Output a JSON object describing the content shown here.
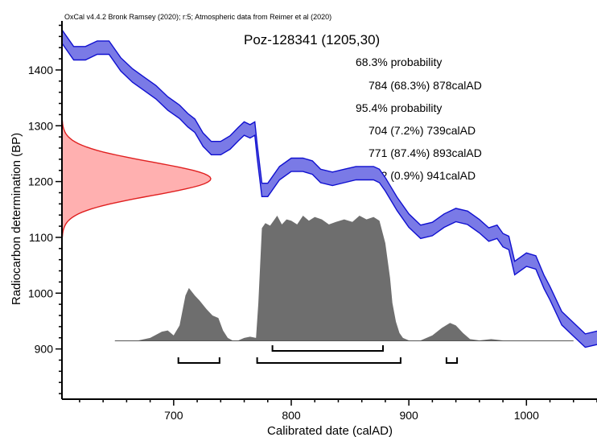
{
  "chart_data": {
    "type": "area",
    "credit": "OxCal v4.4.2 Bronk Ramsey (2020); r:5; Atmospheric data from Reimer et al (2020)",
    "sample": {
      "label": "Poz-128341 (1205,30)",
      "measured_bp": 1205,
      "error": 30
    },
    "xlabel": "Calibrated date (calAD)",
    "ylabel": "Radiocarbon determination (BP)",
    "xlim": [
      605,
      1060
    ],
    "ylim": [
      810,
      1485
    ],
    "xticks": [
      700,
      800,
      900,
      1000
    ],
    "yticks": [
      900,
      1000,
      1100,
      1200,
      1300,
      1400
    ],
    "ranges_text": {
      "sigma1_heading": "68.3% probability",
      "sigma1": [
        "784 (68.3%) 878calAD"
      ],
      "sigma2_heading": "95.4% probability",
      "sigma2": [
        "704 (7.2%) 739calAD",
        "771 (87.4%) 893calAD",
        "932 (0.9%) 941calAD"
      ]
    },
    "ranges": {
      "sigma1": [
        [
          784,
          878
        ]
      ],
      "sigma2": [
        [
          704,
          739
        ],
        [
          771,
          893
        ],
        [
          932,
          941
        ]
      ]
    },
    "calibration_curve": {
      "x": [
        605,
        615,
        625,
        635,
        645,
        655,
        665,
        675,
        685,
        695,
        705,
        712,
        718,
        725,
        732,
        740,
        748,
        755,
        760,
        765,
        769,
        771,
        775,
        780,
        790,
        800,
        810,
        818,
        825,
        835,
        845,
        855,
        862,
        870,
        875,
        880,
        890,
        900,
        910,
        920,
        930,
        940,
        950,
        960,
        968,
        975,
        980,
        985,
        990,
        1000,
        1008,
        1015,
        1020,
        1030,
        1040,
        1050,
        1060
      ],
      "y": [
        1460,
        1430,
        1430,
        1440,
        1440,
        1410,
        1390,
        1375,
        1360,
        1340,
        1325,
        1310,
        1300,
        1275,
        1260,
        1260,
        1270,
        1285,
        1295,
        1290,
        1295,
        1255,
        1185,
        1185,
        1215,
        1230,
        1230,
        1225,
        1210,
        1205,
        1210,
        1215,
        1215,
        1215,
        1210,
        1195,
        1160,
        1130,
        1110,
        1115,
        1130,
        1140,
        1135,
        1120,
        1105,
        1110,
        1095,
        1090,
        1045,
        1060,
        1055,
        1020,
        1000,
        955,
        935,
        915,
        920
      ],
      "sigma": 12
    },
    "measurement_curve": {
      "y_mean": 1205,
      "sd": 30,
      "extent_sd": 3.5
    },
    "probability_distribution": {
      "x": [
        650,
        670,
        680,
        690,
        695,
        700,
        705,
        710,
        713,
        718,
        722,
        728,
        733,
        738,
        742,
        746,
        750,
        755,
        760,
        765,
        770,
        772,
        775,
        778,
        782,
        785,
        788,
        792,
        796,
        800,
        805,
        810,
        815,
        820,
        826,
        832,
        838,
        845,
        852,
        858,
        864,
        870,
        875,
        880,
        884,
        886,
        889,
        892,
        895,
        900,
        910,
        920,
        928,
        935,
        940,
        946,
        952,
        960,
        970,
        980,
        1000,
        1040
      ],
      "density": [
        0,
        0,
        0.02,
        0.07,
        0.08,
        0.04,
        0.12,
        0.36,
        0.42,
        0.36,
        0.32,
        0.25,
        0.2,
        0.18,
        0.08,
        0.02,
        0,
        0,
        0.02,
        0.03,
        0.02,
        0.3,
        0.9,
        0.94,
        0.92,
        0.96,
        1.0,
        0.93,
        0.97,
        0.96,
        0.93,
        1.0,
        0.96,
        0.99,
        0.97,
        0.93,
        0.95,
        0.97,
        0.95,
        1.0,
        0.97,
        0.99,
        0.96,
        0.78,
        0.5,
        0.3,
        0.15,
        0.06,
        0.02,
        0,
        0,
        0.04,
        0.1,
        0.14,
        0.12,
        0.06,
        0.01,
        0,
        0.01,
        0,
        0,
        0
      ]
    },
    "colors": {
      "curve_fill": "#7a7ae6",
      "curve_line": "#1010d0",
      "measurement_fill": "#ffb0b0",
      "measurement_line": "#e02020",
      "probability_fill": "#6e6e6e",
      "axis": "#000000"
    }
  }
}
